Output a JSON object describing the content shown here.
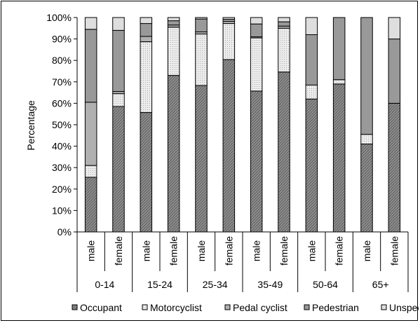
{
  "chart_data": {
    "type": "bar",
    "stacked": "percent",
    "ylabel": "Percentage",
    "ylim": [
      0,
      100
    ],
    "yticks": [
      "0%",
      "10%",
      "20%",
      "30%",
      "40%",
      "50%",
      "60%",
      "70%",
      "80%",
      "90%",
      "100%"
    ],
    "groups": [
      {
        "label": "0-14",
        "bars": [
          {
            "label": "male",
            "values": [
              25.5,
              5.5,
              29.5,
              34,
              5.5
            ]
          },
          {
            "label": "female",
            "values": [
              58.5,
              6,
              1,
              28.5,
              6
            ]
          }
        ]
      },
      {
        "label": "15-24",
        "bars": [
          {
            "label": "male",
            "values": [
              55.7,
              33,
              2.5,
              6,
              2.8
            ]
          },
          {
            "label": "female",
            "values": [
              73,
              22.5,
              1,
              2,
              1.5
            ]
          }
        ]
      },
      {
        "label": "25-34",
        "bars": [
          {
            "label": "male",
            "values": [
              68.3,
              24,
              1,
              6,
              0.7
            ]
          },
          {
            "label": "female",
            "values": [
              80.4,
              16.8,
              1,
              1,
              0.8
            ]
          }
        ]
      },
      {
        "label": "35-49",
        "bars": [
          {
            "label": "male",
            "values": [
              65.7,
              24.8,
              0.5,
              6,
              3
            ]
          },
          {
            "label": "female",
            "values": [
              74.6,
              20.4,
              1,
              2,
              2
            ]
          }
        ]
      },
      {
        "label": "50-64",
        "bars": [
          {
            "label": "male",
            "values": [
              62,
              6.5,
              0,
              23.5,
              8
            ]
          },
          {
            "label": "female",
            "values": [
              69,
              2,
              0,
              29,
              0
            ]
          }
        ]
      },
      {
        "label": "65+",
        "bars": [
          {
            "label": "male",
            "values": [
              41,
              4.5,
              0,
              54.5,
              0
            ]
          },
          {
            "label": "female",
            "values": [
              60,
              0,
              0,
              30,
              10
            ]
          }
        ]
      }
    ],
    "series": [
      {
        "name": "Occupant",
        "color": "#8f8f8f",
        "pattern": "hatch"
      },
      {
        "name": "Motorcyclist",
        "color": "#e4e4e4",
        "pattern": "dots"
      },
      {
        "name": "Pedal cyclist",
        "color": "#b0b0b0",
        "pattern": "solid"
      },
      {
        "name": "Pedestrian",
        "color": "#999999",
        "pattern": "solid"
      },
      {
        "name": "Unspecified",
        "color": "#dedede",
        "pattern": "solid"
      }
    ],
    "legend_position": "bottom",
    "grid": false
  }
}
